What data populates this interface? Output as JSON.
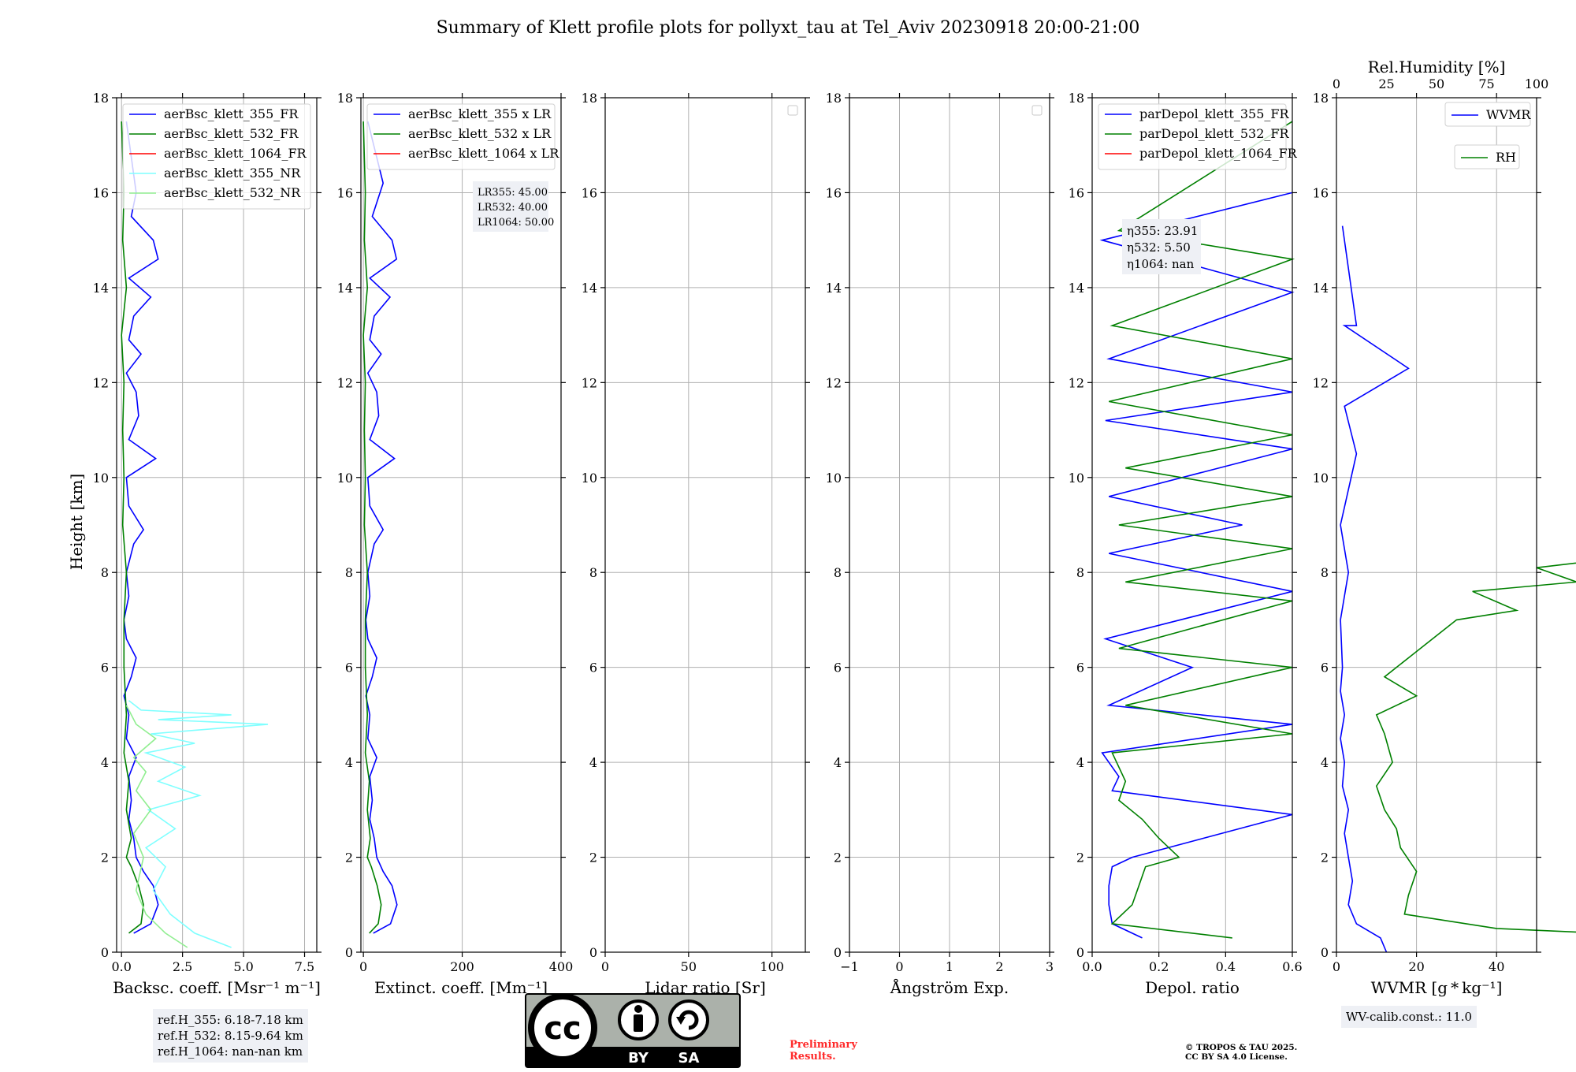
{
  "figure": {
    "title": "Summary of Klett profile plots for pollyxt_tau at Tel_Aviv 20230918 20:00-21:00",
    "ylabel": "Height [km]"
  },
  "chart_data": [
    {
      "type": "line",
      "xlabel": "Backsc. coeff. [Msr⁻¹ m⁻¹]",
      "xlim": [
        -0.2,
        8.0
      ],
      "ylim": [
        0,
        18
      ],
      "xticks": [
        0,
        2.5,
        5,
        7.5
      ],
      "xtick_labels": [
        "0.0",
        "2.5",
        "5.0",
        "7.5"
      ],
      "yticks": [
        0,
        2,
        4,
        6,
        8,
        10,
        12,
        14,
        16,
        18
      ],
      "grid": true,
      "legend_position": "top",
      "series": [
        {
          "name": "aerBsc_klett_355_FR",
          "color": "#0000ff",
          "x": [
            0.5,
            1.2,
            1.5,
            1.3,
            0.9,
            0.6,
            0.5,
            0.3,
            0.4,
            0.3,
            0.6,
            0.2,
            0.3,
            0.1,
            0.4,
            0.6,
            0.2,
            0.1,
            0.3,
            0.2,
            0.5,
            0.9,
            0.3,
            0.2,
            1.4,
            0.3,
            0.7,
            0.6,
            0.2,
            0.8,
            0.3,
            0.5,
            1.2,
            0.3,
            1.5,
            1.3,
            0.4,
            0.6,
            0.2
          ],
          "y": [
            0.4,
            0.6,
            1.0,
            1.4,
            1.7,
            2.0,
            2.4,
            2.8,
            3.2,
            3.7,
            4.1,
            4.5,
            5.0,
            5.4,
            5.8,
            6.2,
            6.6,
            7.0,
            7.5,
            8.0,
            8.6,
            8.9,
            9.4,
            10.0,
            10.4,
            10.8,
            11.3,
            11.8,
            12.2,
            12.6,
            12.9,
            13.4,
            13.8,
            14.2,
            14.6,
            15.0,
            15.5,
            16.0,
            17.5
          ]
        },
        {
          "name": "aerBsc_klett_532_FR",
          "color": "#008000",
          "x": [
            0.3,
            0.8,
            0.9,
            0.7,
            0.4,
            0.2,
            0.4,
            0.2,
            0.3,
            0.1,
            0.2,
            0.1,
            0.1,
            0.2,
            0.05,
            0.1,
            0.05,
            0.1,
            0.0,
            0.2,
            0.05,
            0.1,
            0.0
          ],
          "y": [
            0.4,
            0.6,
            1.0,
            1.4,
            1.8,
            2.0,
            2.4,
            3.0,
            3.6,
            4.2,
            5.0,
            6.0,
            7.0,
            8.0,
            9.0,
            10.0,
            11.0,
            12.0,
            13.0,
            14.0,
            15.0,
            16.0,
            17.5
          ]
        },
        {
          "name": "aerBsc_klett_1064_FR",
          "color": "#ff0000",
          "x": [],
          "y": []
        },
        {
          "name": "aerBsc_klett_355_NR",
          "color": "#7fffff",
          "x": [
            4.5,
            3.0,
            2.0,
            1.3,
            1.8,
            1.0,
            2.2,
            1.1,
            3.2,
            1.5,
            2.6,
            1.0,
            3.0,
            1.2,
            6.0,
            1.5,
            4.5,
            0.8,
            0.3
          ],
          "y": [
            0.1,
            0.4,
            0.8,
            1.3,
            1.8,
            2.2,
            2.6,
            3.0,
            3.3,
            3.6,
            3.9,
            4.2,
            4.4,
            4.6,
            4.8,
            4.9,
            5.0,
            5.1,
            5.3
          ]
        },
        {
          "name": "aerBsc_klett_532_NR",
          "color": "#90ee90",
          "x": [
            2.7,
            1.8,
            1.0,
            0.6,
            0.9,
            0.5,
            1.2,
            0.6,
            1.0,
            0.5,
            1.4,
            0.6,
            0.2
          ],
          "y": [
            0.1,
            0.4,
            0.8,
            1.3,
            2.0,
            2.5,
            3.0,
            3.4,
            3.8,
            4.1,
            4.5,
            4.8,
            5.2
          ]
        }
      ],
      "annotation": [
        "ref.H_355: 6.18-7.18 km",
        "ref.H_532: 8.15-9.64 km",
        "ref.H_1064: nan-nan km"
      ]
    },
    {
      "type": "line",
      "xlabel": "Extinct. coeff. [Mm⁻¹]",
      "xlim": [
        -5,
        400
      ],
      "ylim": [
        0,
        18
      ],
      "xticks": [
        0,
        200,
        400
      ],
      "xtick_labels": [
        "0",
        "200",
        "400"
      ],
      "grid": true,
      "legend_position": "top",
      "series": [
        {
          "name": "aerBsc_klett_355 x LR",
          "color": "#0000ff",
          "x": [
            20,
            55,
            68,
            58,
            40,
            27,
            22,
            13,
            18,
            13,
            27,
            9,
            13,
            5,
            18,
            27,
            9,
            5,
            13,
            9,
            22,
            40,
            13,
            9,
            63,
            13,
            31,
            27,
            9,
            36,
            13,
            22,
            54,
            13,
            67,
            58,
            18,
            40,
            9
          ],
          "y": [
            0.4,
            0.6,
            1.0,
            1.4,
            1.7,
            2.0,
            2.4,
            2.8,
            3.2,
            3.7,
            4.1,
            4.5,
            5.0,
            5.4,
            5.8,
            6.2,
            6.6,
            7.0,
            7.5,
            8.0,
            8.6,
            8.9,
            9.4,
            10.0,
            10.4,
            10.8,
            11.3,
            11.8,
            12.2,
            12.6,
            12.9,
            13.4,
            13.8,
            14.2,
            14.6,
            15.0,
            15.5,
            16.2,
            17.5
          ]
        },
        {
          "name": "aerBsc_klett_532 x LR",
          "color": "#008000",
          "x": [
            12,
            30,
            36,
            28,
            16,
            8,
            14,
            8,
            12,
            4,
            8,
            4,
            4,
            8,
            2,
            4,
            2,
            4,
            0,
            8,
            2,
            4,
            0
          ],
          "y": [
            0.4,
            0.6,
            1.0,
            1.4,
            1.8,
            2.0,
            2.4,
            3.0,
            3.6,
            4.2,
            5.0,
            6.0,
            7.0,
            8.0,
            9.0,
            10.0,
            11.0,
            12.0,
            13.0,
            14.0,
            15.0,
            16.0,
            17.5
          ]
        },
        {
          "name": "aerBsc_klett_1064 x LR",
          "color": "#ff0000",
          "x": [],
          "y": []
        }
      ],
      "annotation": [
        "LR355: 45.00",
        "LR532: 40.00",
        "LR1064: 50.00"
      ]
    },
    {
      "type": "line",
      "xlabel": "Lidar ratio [Sr]",
      "xlim": [
        0,
        120
      ],
      "ylim": [
        0,
        18
      ],
      "xticks": [
        0,
        50,
        100
      ],
      "xtick_labels": [
        "0",
        "50",
        "100"
      ],
      "grid": true,
      "legend_position": "top-right",
      "series": []
    },
    {
      "type": "line",
      "xlabel": "Ångström Exp.",
      "xlim": [
        -1,
        3
      ],
      "ylim": [
        0,
        18
      ],
      "xticks": [
        -1,
        0,
        1,
        2,
        3
      ],
      "xtick_labels": [
        "−1",
        "0",
        "1",
        "2",
        "3"
      ],
      "grid": true,
      "legend_position": "top-right",
      "series": []
    },
    {
      "type": "line",
      "xlabel": "Depol. ratio",
      "xlim": [
        0,
        0.6
      ],
      "ylim": [
        0,
        18
      ],
      "xticks": [
        0,
        0.2,
        0.4,
        0.6
      ],
      "xtick_labels": [
        "0.0",
        "0.2",
        "0.4",
        "0.6"
      ],
      "grid": true,
      "legend_position": "top",
      "series": [
        {
          "name": "parDepol_klett_355_FR",
          "color": "#0000ff",
          "x": [
            0.15,
            0.06,
            0.05,
            0.05,
            0.06,
            0.12,
            0.6,
            0.06,
            0.08,
            0.03,
            0.6,
            0.05,
            0.3,
            0.04,
            0.6,
            0.05,
            0.45,
            0.05,
            0.6,
            0.04,
            0.6,
            0.05,
            0.6,
            0.03,
            0.6
          ],
          "y": [
            0.3,
            0.6,
            1.0,
            1.4,
            1.8,
            2.0,
            2.9,
            3.4,
            3.7,
            4.2,
            4.8,
            5.2,
            6.0,
            6.6,
            7.6,
            8.4,
            9.0,
            9.6,
            10.6,
            11.2,
            11.8,
            12.5,
            13.9,
            15.0,
            16.0
          ]
        },
        {
          "name": "parDepol_klett_532_FR",
          "color": "#008000",
          "x": [
            0.42,
            0.06,
            0.12,
            0.14,
            0.16,
            0.26,
            0.2,
            0.15,
            0.08,
            0.1,
            0.06,
            0.6,
            0.1,
            0.6,
            0.08,
            0.6,
            0.1,
            0.6,
            0.08,
            0.6,
            0.1,
            0.6,
            0.05,
            0.6,
            0.06,
            0.6,
            0.08,
            0.6
          ],
          "y": [
            0.3,
            0.6,
            1.0,
            1.4,
            1.8,
            2.0,
            2.4,
            2.8,
            3.2,
            3.6,
            4.2,
            4.6,
            5.2,
            6.0,
            6.4,
            7.4,
            7.8,
            8.5,
            9.0,
            9.6,
            10.2,
            10.9,
            11.6,
            12.5,
            13.2,
            14.6,
            15.2,
            17.5
          ]
        },
        {
          "name": "parDepol_klett_1064_FR",
          "color": "#ff0000",
          "x": [],
          "y": []
        }
      ],
      "annotation": [
        "η355: 23.91",
        "η532: 5.50",
        "η1064: nan"
      ]
    },
    {
      "type": "line",
      "xlabel": "WVMR [g * kg⁻¹]",
      "xlabel_top": "Rel.Humidity [%]",
      "xlim": [
        0,
        50
      ],
      "ylim": [
        0,
        18
      ],
      "xticks": [
        0,
        20,
        40
      ],
      "xtick_labels": [
        "0",
        "20",
        "40"
      ],
      "xlim_top": [
        0,
        100
      ],
      "xticks_top": [
        0,
        25,
        50,
        75,
        100
      ],
      "grid": true,
      "legend_position": "top-right",
      "series": [
        {
          "name": "WVMR",
          "color": "#0000ff",
          "x": [
            12.5,
            11,
            5,
            3,
            4,
            3,
            2,
            3,
            1.5,
            2,
            1,
            2,
            1,
            1.5,
            1,
            3,
            1,
            5,
            2,
            18,
            2,
            5,
            1.5
          ],
          "y": [
            0.0,
            0.3,
            0.6,
            1.0,
            1.5,
            2.0,
            2.5,
            3.0,
            3.5,
            4.0,
            4.5,
            5.0,
            5.5,
            6.0,
            7.0,
            8.0,
            9.0,
            10.5,
            11.5,
            12.3,
            13.2,
            13.2,
            15.3
          ]
        },
        {
          "name": "RH",
          "color": "#008000",
          "x": [
            62,
            66,
            40,
            17,
            18,
            20,
            16,
            15,
            12,
            10,
            14,
            12,
            10,
            20,
            12,
            18,
            24,
            30,
            45,
            34,
            60,
            50,
            80,
            70,
            95,
            80,
            90
          ],
          "y": [
            0.0,
            0.4,
            0.5,
            0.8,
            1.2,
            1.7,
            2.2,
            2.6,
            3.0,
            3.5,
            4.0,
            4.6,
            5.0,
            5.4,
            5.8,
            6.2,
            6.6,
            7.0,
            7.2,
            7.6,
            7.8,
            8.1,
            8.4,
            8.8,
            9.0,
            9.3,
            9.6
          ]
        }
      ],
      "annotation": [
        "WV-calib.const.: 11.0"
      ]
    }
  ],
  "footer": {
    "license_cc": "cc",
    "license_by": "BY",
    "license_sa": "SA",
    "preliminary": [
      "Preliminary",
      "Results."
    ],
    "copyright": [
      "© TROPOS & TAU 2025.",
      "CC BY SA 4.0 License."
    ]
  }
}
